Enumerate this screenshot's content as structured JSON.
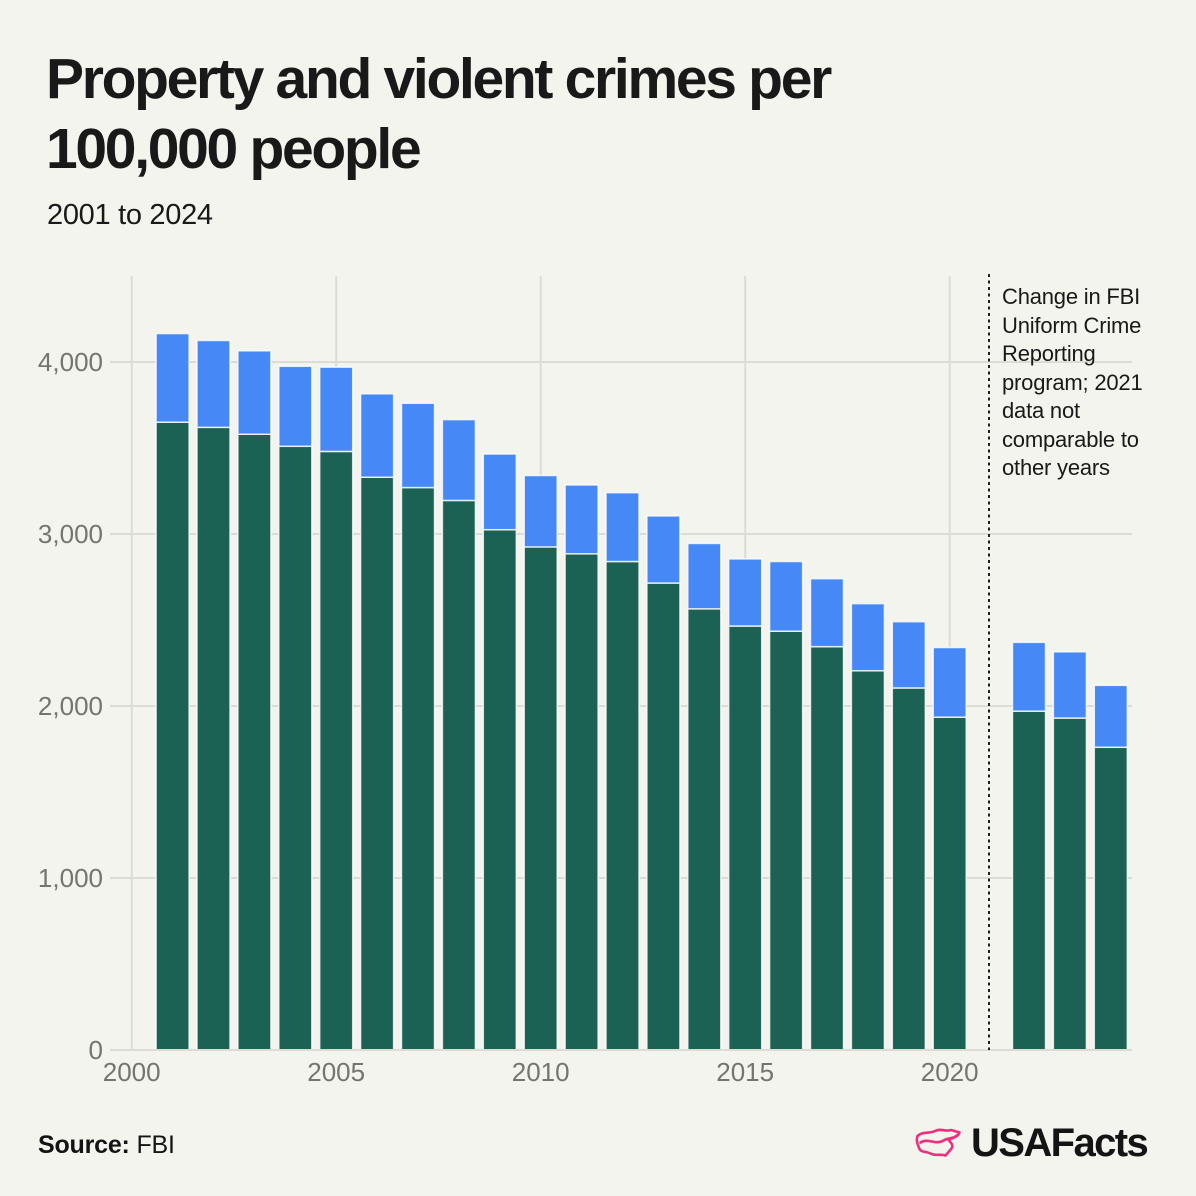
{
  "header": {
    "title": "Property and violent crimes per 100,000 people",
    "title_lines": [
      "Property and violent crimes per",
      "100,000 people"
    ],
    "subtitle": "2001 to 2024"
  },
  "annotation": {
    "text": "Change in FBI Uniform Crime Reporting program; 2021 data not comparable to other years",
    "lines": [
      "Change in FBI",
      "Uniform Crime",
      "Reporting",
      "program; 2021",
      "data not",
      "comparable to",
      "other years"
    ],
    "applies_to_year": 2021
  },
  "footer": {
    "source_label": "Source:",
    "source_value": "FBI",
    "brand_wordmark": "USAFacts"
  },
  "colors": {
    "property_bar": "#1b6254",
    "violent_bar": "#4689f6",
    "brand_pink": "#ee2f7e",
    "background": "#f4f4ee"
  },
  "chart_data": {
    "type": "bar",
    "stacked": true,
    "title": "Property and violent crimes per 100,000 people",
    "subtitle": "2001 to 2024",
    "xlabel": "",
    "ylabel": "",
    "grid": true,
    "legend": "none",
    "gap_year": 2021,
    "gap_note": "no bar shown for 2021; dotted vertical rule marks FBI reporting change",
    "categories": [
      2001,
      2002,
      2003,
      2004,
      2005,
      2006,
      2007,
      2008,
      2009,
      2010,
      2011,
      2012,
      2013,
      2014,
      2015,
      2016,
      2017,
      2018,
      2019,
      2020,
      2021,
      2022,
      2023,
      2024
    ],
    "series": [
      {
        "name": "Property crimes per 100,000 people",
        "color": "#1b6254",
        "values": [
          3650,
          3620,
          3580,
          3510,
          3480,
          3330,
          3270,
          3195,
          3025,
          2925,
          2885,
          2840,
          2715,
          2565,
          2465,
          2435,
          2345,
          2205,
          2105,
          1935,
          null,
          1970,
          1930,
          1760
        ]
      },
      {
        "name": "Violent crimes per 100,000 people",
        "color": "#4689f6",
        "values": [
          515,
          505,
          485,
          465,
          490,
          485,
          490,
          470,
          440,
          415,
          400,
          400,
          390,
          380,
          390,
          405,
          395,
          390,
          385,
          405,
          null,
          400,
          385,
          360
        ]
      }
    ],
    "totals": [
      4165,
      4125,
      4065,
      3975,
      3970,
      3815,
      3760,
      3665,
      3465,
      3340,
      3285,
      3240,
      3105,
      2945,
      2855,
      2840,
      2740,
      2595,
      2490,
      2340,
      null,
      2370,
      2315,
      2120
    ],
    "x_tick_years": [
      2000,
      2005,
      2010,
      2015,
      2020
    ],
    "x_tick_labels": [
      "2000",
      "2005",
      "2010",
      "2015",
      "2020"
    ],
    "y_tick_values": [
      0,
      1000,
      2000,
      3000,
      4000
    ],
    "y_tick_labels": [
      "0",
      "1,000",
      "2,000",
      "3,000",
      "4,000"
    ],
    "ylim": [
      0,
      4500
    ]
  }
}
